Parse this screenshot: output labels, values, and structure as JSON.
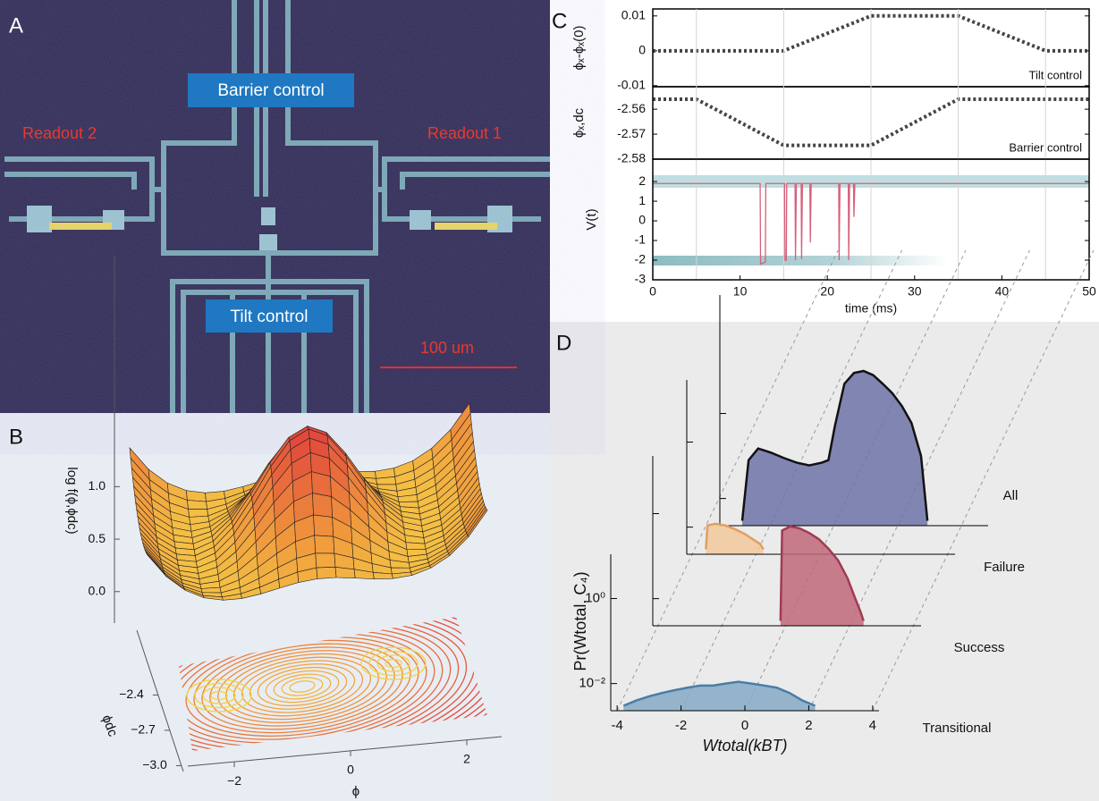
{
  "panel_labels": [
    "A",
    "B",
    "C",
    "D"
  ],
  "micrograph": {
    "barrier_label": "Barrier control",
    "tilt_label": "Tilt control",
    "readout_left": "Readout 2",
    "readout_right": "Readout 1",
    "scale_bar": "100 um"
  },
  "surface": {
    "zlabel": "log f(ϕ,ϕdc)",
    "xlabel": "ϕ",
    "ylabel": "ϕdc",
    "zlim": [
      -0.3,
      3.2
    ],
    "zticks": [
      {
        "value": 0,
        "label": "0.0"
      },
      0.5,
      {
        "value": 1,
        "label": "1.0"
      }
    ],
    "xlim": [
      -2.8,
      2.6
    ],
    "xticks": [
      {
        "value": -2,
        "label": "−2"
      },
      0,
      2
    ],
    "ylim": [
      -3.05,
      -1.85
    ],
    "yticks": [
      {
        "value": -3,
        "label": "−3.0"
      },
      {
        "value": -2.7,
        "label": "−2.7"
      },
      {
        "value": -2.4,
        "label": "−2.4"
      }
    ]
  },
  "chart_data": [
    {
      "type": "line",
      "ylabel": "ϕₓ-ϕₓ(0)",
      "annotation": "Tilt control",
      "color": "#444444",
      "x": [
        0,
        15,
        25,
        35,
        45,
        50
      ],
      "values": [
        0,
        0,
        0.01,
        0.01,
        0,
        0
      ],
      "xlim": [
        0,
        50
      ],
      "ylim": [
        -0.0103,
        0.012
      ],
      "yticks": [
        -0.01,
        0,
        0.01
      ]
    },
    {
      "type": "line",
      "ylabel": "ϕₓ,dc",
      "annotation": "Barrier control",
      "color": "#444444",
      "x": [
        0,
        5,
        15,
        25,
        35,
        50
      ],
      "values": [
        -2.556,
        -2.556,
        -2.5745,
        -2.5745,
        -2.556,
        -2.556
      ],
      "xlim": [
        0,
        50
      ],
      "ylim": [
        -2.58,
        -2.551
      ],
      "yticks": [
        -2.58,
        -2.57,
        -2.56
      ]
    },
    {
      "type": "line",
      "ylabel": "V(t)",
      "xlabel": "time (ms)",
      "color": "#d6607a",
      "x": [
        0,
        12.3,
        12.35,
        12.9,
        12.95,
        15.1,
        15.15,
        15.3,
        15.35,
        16.3,
        16.35,
        16.45,
        17.0,
        17.05,
        17.15,
        18.0,
        18.05,
        18.15,
        21.3,
        21.35,
        21.45,
        22.4,
        22.45,
        22.55,
        23.0,
        23.05,
        23.15,
        50
      ],
      "values": [
        1.9,
        1.9,
        -2.2,
        -2.1,
        1.9,
        1.9,
        -2.0,
        -2.0,
        1.9,
        1.9,
        -2.0,
        1.9,
        1.9,
        -1.95,
        1.9,
        1.9,
        -1.1,
        1.9,
        1.9,
        -2.0,
        1.9,
        1.9,
        -2.0,
        1.9,
        1.9,
        0.2,
        1.9,
        1.9
      ],
      "xlim": [
        0,
        50
      ],
      "xticks": [
        0,
        10,
        20,
        30,
        40,
        50
      ],
      "ylim": [
        -3,
        3.14
      ],
      "yticks": [
        -3,
        -2,
        -1,
        0,
        1,
        2
      ],
      "xlines": [
        5,
        15,
        25,
        35,
        45
      ]
    },
    {
      "type": "histogram-waterfall",
      "xlabel": "Wtotal(kBT)",
      "ylabel": "Pr(Wtotal, C₄)",
      "log_y": true,
      "xlim": [
        -4.2,
        4.2
      ],
      "xticks": [
        -4,
        -2,
        0,
        2,
        4
      ],
      "ylim": [
        0.0023,
        11
      ],
      "yticks": [
        {
          "value": 1,
          "label": "10⁰"
        },
        {
          "value": 0.01,
          "label": "10⁻²"
        }
      ],
      "series": [
        {
          "name": "All",
          "color": "#6f73a8",
          "edge_color": "#111111",
          "x": [
            -3.5,
            -3.3,
            -3.0,
            -2.6,
            -2.2,
            -1.8,
            -1.4,
            -1.0,
            -0.8,
            -0.6,
            -0.3,
            0,
            0.3,
            0.6,
            0.9,
            1.2,
            1.5,
            1.8,
            2.1,
            2.3
          ],
          "values": [
            0.003,
            0.08,
            0.15,
            0.12,
            0.09,
            0.07,
            0.06,
            0.07,
            0.08,
            0.5,
            5,
            9,
            10,
            8,
            5,
            3,
            1.5,
            0.6,
            0.1,
            0.003
          ]
        },
        {
          "name": "Failure",
          "color": "#f2c99c",
          "edge_color": "#e0a060",
          "x": [
            -3.6,
            -3.55,
            -3.3,
            -3.0,
            -2.7,
            -2.4,
            -2.1,
            -1.9,
            -1.8
          ],
          "values": [
            0.003,
            0.011,
            0.012,
            0.011,
            0.009,
            0.007,
            0.005,
            0.004,
            0.003
          ]
        },
        {
          "name": "Success",
          "color": "#c0687a",
          "edge_color": "#a23a55",
          "x": [
            -0.2,
            -0.15,
            0.1,
            0.4,
            0.7,
            1.0,
            1.3,
            1.6,
            1.9,
            2.1,
            2.3,
            2.4
          ],
          "values": [
            0.003,
            0.4,
            0.5,
            0.45,
            0.35,
            0.25,
            0.15,
            0.08,
            0.03,
            0.012,
            0.005,
            0.003
          ]
        },
        {
          "name": "Transitional",
          "color": "#86aac6",
          "edge_color": "#4a7da6",
          "x": [
            -3.8,
            -3.4,
            -3.0,
            -2.6,
            -2.2,
            -1.8,
            -1.4,
            -1.0,
            -0.6,
            -0.2,
            0.2,
            0.6,
            1.0,
            1.4,
            1.8,
            2.2
          ],
          "values": [
            0.003,
            0.004,
            0.005,
            0.006,
            0.007,
            0.008,
            0.009,
            0.009,
            0.01,
            0.011,
            0.01,
            0.009,
            0.008,
            0.006,
            0.004,
            0.003
          ]
        }
      ]
    }
  ]
}
